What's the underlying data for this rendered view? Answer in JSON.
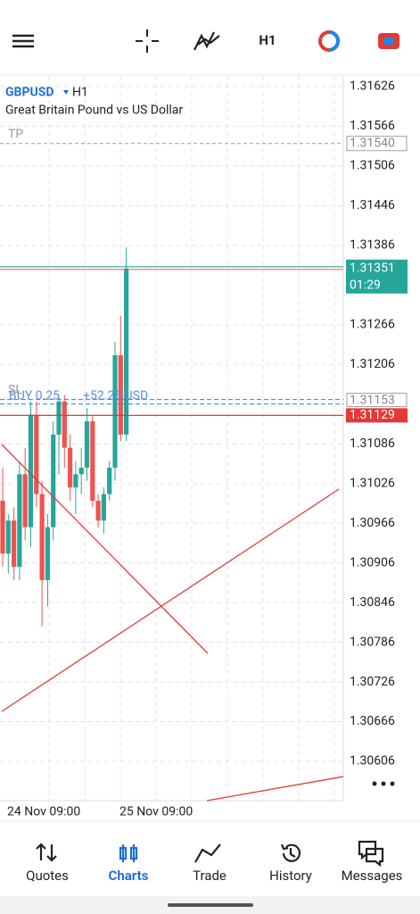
{
  "toolbar": {
    "timeframe": "H1"
  },
  "chart": {
    "symbol": "GBPUSD",
    "timeframe": "H1",
    "description": "Great Britain Pound vs US Dollar",
    "yticks": [
      1.31626,
      1.31566,
      1.31506,
      1.31446,
      1.31386,
      1.31266,
      1.31206,
      1.31086,
      1.31026,
      1.30966,
      1.30906,
      1.30846,
      1.30786,
      1.30726,
      1.30666,
      1.30606
    ],
    "xticks": [
      "24 Nov 09:00",
      "25 Nov 09:00"
    ],
    "take_profit": {
      "text": "TP",
      "price": {
        "value": 1.3154,
        "label": "1.31540"
      }
    },
    "stop_loss": {
      "text": "SL",
      "price": 1.31129
    },
    "position": {
      "text": "BUY 0.25",
      "profit": "+52.25 USD",
      "price": 1.31153
    },
    "bid": {
      "price": 1.31351,
      "timer": "01:29"
    },
    "candles": [
      {
        "open": 1.31,
        "high": 1.3105,
        "low": 1.309,
        "close": 1.3092
      },
      {
        "open": 1.3092,
        "high": 1.3098,
        "low": 1.3089,
        "close": 1.3097
      },
      {
        "open": 1.3097,
        "high": 1.3099,
        "low": 1.3088,
        "close": 1.309
      },
      {
        "open": 1.309,
        "high": 1.3106,
        "low": 1.3088,
        "close": 1.3104
      },
      {
        "open": 1.3104,
        "high": 1.3108,
        "low": 1.3094,
        "close": 1.3096
      },
      {
        "open": 1.3096,
        "high": 1.3115,
        "low": 1.3093,
        "close": 1.3113
      },
      {
        "open": 1.3113,
        "high": 1.3115,
        "low": 1.3099,
        "close": 1.3101
      },
      {
        "open": 1.3101,
        "high": 1.3103,
        "low": 1.3081,
        "close": 1.3088
      },
      {
        "open": 1.3088,
        "high": 1.3098,
        "low": 1.3084,
        "close": 1.3096
      },
      {
        "open": 1.3096,
        "high": 1.3112,
        "low": 1.3094,
        "close": 1.311
      },
      {
        "open": 1.311,
        "high": 1.3116,
        "low": 1.3104,
        "close": 1.3115
      },
      {
        "open": 1.3115,
        "high": 1.3116,
        "low": 1.3105,
        "close": 1.3108
      },
      {
        "open": 1.3108,
        "high": 1.311,
        "low": 1.31,
        "close": 1.3102
      },
      {
        "open": 1.3102,
        "high": 1.3106,
        "low": 1.3098,
        "close": 1.3104
      },
      {
        "open": 1.3104,
        "high": 1.3108,
        "low": 1.3101,
        "close": 1.3105
      },
      {
        "open": 1.3105,
        "high": 1.3114,
        "low": 1.3103,
        "close": 1.3112
      },
      {
        "open": 1.3112,
        "high": 1.3113,
        "low": 1.3099,
        "close": 1.31
      },
      {
        "open": 1.31,
        "high": 1.3101,
        "low": 1.3096,
        "close": 1.3097
      },
      {
        "open": 1.3097,
        "high": 1.3102,
        "low": 1.3095,
        "close": 1.3101
      },
      {
        "open": 1.3101,
        "high": 1.3106,
        "low": 1.31,
        "close": 1.3105
      },
      {
        "open": 1.3105,
        "high": 1.3124,
        "low": 1.3103,
        "close": 1.3122
      },
      {
        "open": 1.3122,
        "high": 1.3128,
        "low": 1.3109,
        "close": 1.311
      },
      {
        "open": 1.311,
        "high": 1.31383,
        "low": 1.3109,
        "close": 1.31351
      }
    ]
  },
  "nav": {
    "items": [
      "Quotes",
      "Charts",
      "Trade",
      "History",
      "Messages"
    ],
    "active": 1
  }
}
